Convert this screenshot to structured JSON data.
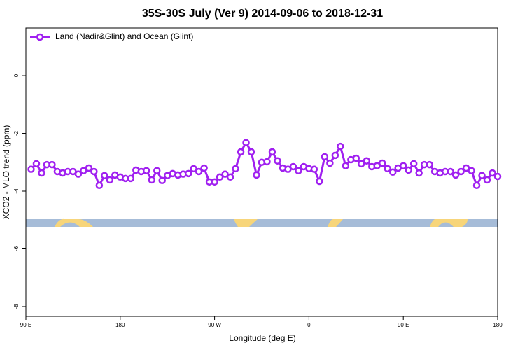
{
  "chart_data": {
    "type": "line",
    "title": "35S-30S July (Ver 9)   2014-09-06 to 2018-12-31",
    "xlabel": "Longitude (deg E)",
    "ylabel": "XCO2 - MLO trend (ppm)",
    "x": [
      95,
      100,
      105,
      110,
      115,
      120,
      125,
      130,
      135,
      140,
      145,
      150,
      155,
      160,
      165,
      170,
      175,
      180,
      185,
      190,
      195,
      200,
      205,
      210,
      215,
      220,
      225,
      230,
      235,
      240,
      245,
      250,
      255,
      260,
      265,
      270,
      275,
      280,
      285,
      290,
      295,
      300,
      305,
      310,
      315,
      320,
      325,
      330,
      335,
      340,
      345,
      350,
      355,
      360,
      365,
      370,
      375,
      380,
      385,
      390,
      395,
      400,
      405,
      410,
      415,
      420,
      425,
      430,
      435,
      440,
      445,
      450,
      455,
      460,
      465,
      470,
      475,
      480,
      485,
      490,
      495,
      500,
      505,
      510,
      515,
      520,
      525,
      530,
      535,
      540
    ],
    "series": [
      {
        "name": "Land (Nadir&Glint) and Ocean (Glint)",
        "color": "#a020f0",
        "values": [
          -3.24,
          -3.05,
          -3.37,
          -3.08,
          -3.08,
          -3.32,
          -3.37,
          -3.32,
          -3.32,
          -3.41,
          -3.29,
          -3.2,
          -3.32,
          -3.8,
          -3.46,
          -3.61,
          -3.44,
          -3.51,
          -3.56,
          -3.56,
          -3.27,
          -3.32,
          -3.29,
          -3.61,
          -3.29,
          -3.63,
          -3.46,
          -3.39,
          -3.44,
          -3.41,
          -3.39,
          -3.22,
          -3.32,
          -3.2,
          -3.68,
          -3.68,
          -3.51,
          -3.41,
          -3.51,
          -3.22,
          -2.64,
          -2.32,
          -2.64,
          -3.44,
          -3.0,
          -2.98,
          -2.64,
          -2.95,
          -3.2,
          -3.24,
          -3.15,
          -3.29,
          -3.15,
          -3.22,
          -3.24,
          -3.66,
          -2.81,
          -3.03,
          -2.76,
          -2.45,
          -3.12,
          -2.91,
          -2.86,
          -3.05,
          -2.95,
          -3.15,
          -3.12,
          -3.03,
          -3.22,
          -3.34,
          -3.2,
          -3.12,
          -3.27,
          -3.05,
          -3.37,
          -3.08,
          -3.08,
          -3.32,
          -3.37,
          -3.32,
          -3.32,
          -3.44,
          -3.32,
          -3.2,
          -3.29,
          -3.8,
          -3.46,
          -3.61,
          -3.37,
          -3.49
        ]
      }
    ],
    "xlim": [
      90,
      540
    ],
    "xticks": [
      {
        "value": 90,
        "label": "90 E"
      },
      180,
      {
        "value": 270,
        "label": "90 W"
      },
      {
        "value": 360,
        "label": "0"
      },
      {
        "value": 450,
        "label": "90 E"
      },
      {
        "value": 540,
        "label": "180"
      }
    ],
    "ylim": [
      -8.34,
      1.65
    ],
    "yticks": [
      0,
      -2,
      -4,
      -6,
      -8
    ],
    "legend": "top-left",
    "grid": false
  }
}
